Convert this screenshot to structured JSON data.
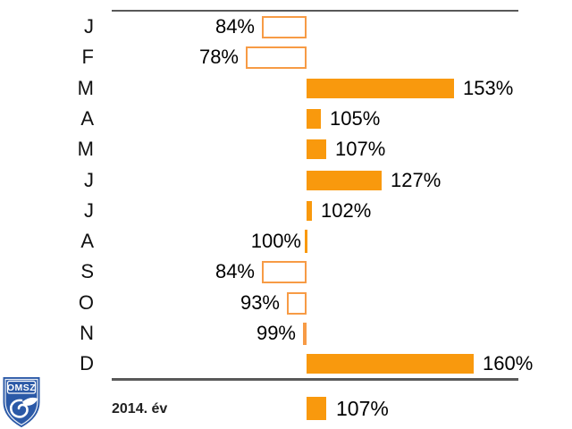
{
  "chart_data": {
    "type": "bar",
    "orientation": "horizontal",
    "baseline": 100,
    "unit": "%",
    "categories": [
      "J",
      "F",
      "M",
      "A",
      "M",
      "J",
      "J",
      "A",
      "S",
      "O",
      "N",
      "D"
    ],
    "values": [
      84,
      78,
      153,
      105,
      107,
      127,
      102,
      100,
      84,
      93,
      99,
      160
    ],
    "value_labels": [
      "84%",
      "78%",
      "153%",
      "105%",
      "107%",
      "127%",
      "102%",
      "100%",
      "84%",
      "93%",
      "99%",
      "160%"
    ],
    "summary_row": {
      "label": "2014. év",
      "value": 107,
      "value_label": "107%"
    },
    "legend_position": "none",
    "grid": false,
    "colors": {
      "bar_fill": "#F9990D",
      "bar_outline": "#F79B45",
      "axis_line": "#595959",
      "text": "#000000"
    }
  },
  "logo": {
    "text": "OMSZ",
    "bg_color": "#2B59A7"
  }
}
